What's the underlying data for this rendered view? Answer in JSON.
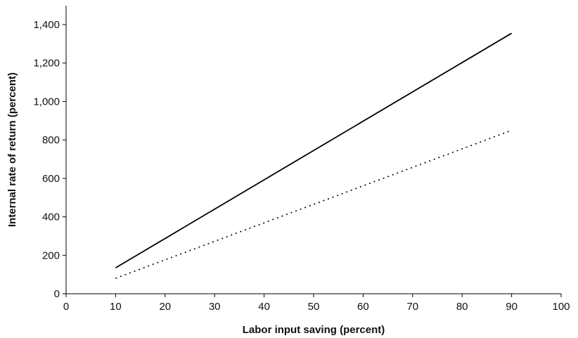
{
  "chart_data": {
    "type": "line",
    "title": "",
    "xlabel": "Labor input saving (percent)",
    "ylabel": "Internal rate of return (percent)",
    "xlim": [
      0,
      100
    ],
    "ylim": [
      0,
      1500
    ],
    "x_ticks": [
      0,
      10,
      20,
      30,
      40,
      50,
      60,
      70,
      80,
      90,
      100
    ],
    "x_tick_labels": [
      "0",
      "10",
      "20",
      "30",
      "40",
      "50",
      "60",
      "70",
      "80",
      "90",
      "100"
    ],
    "y_ticks": [
      0,
      200,
      400,
      600,
      800,
      1000,
      1200,
      1400
    ],
    "y_tick_labels": [
      "0",
      "200",
      "400",
      "600",
      "800",
      "1,000",
      "1,200",
      "1,400"
    ],
    "grid": false,
    "legend": "none",
    "series": [
      {
        "style": "solid",
        "color": "#000000",
        "x": [
          10,
          90
        ],
        "y": [
          135,
          1355
        ]
      },
      {
        "style": "dotted",
        "color": "#000000",
        "x": [
          10,
          90
        ],
        "y": [
          80,
          850
        ]
      }
    ]
  }
}
